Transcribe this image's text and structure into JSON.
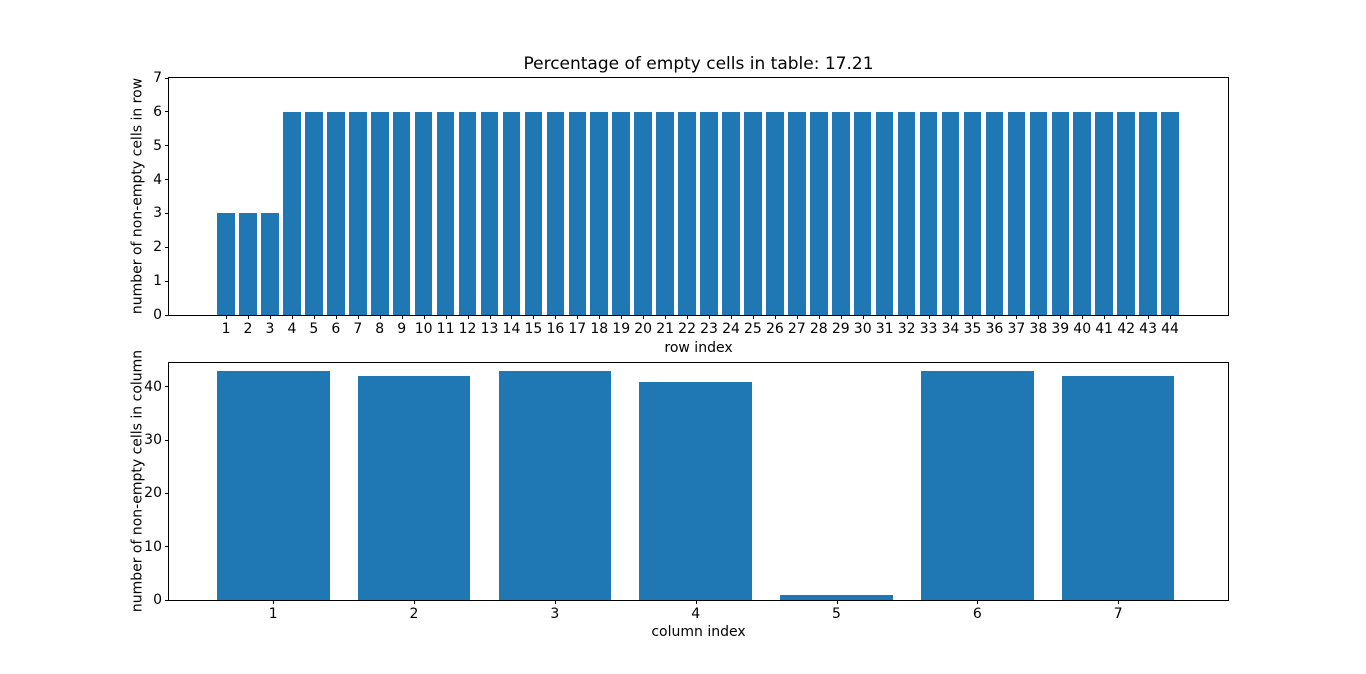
{
  "figure": {
    "background": "#ffffff",
    "accent_color": "#1f77b4"
  },
  "chart_data": [
    {
      "type": "bar",
      "title": "Percentage of empty cells in table: 17.21",
      "xlabel": "row index",
      "ylabel": "number of non-empty cells in row",
      "categories": [
        1,
        2,
        3,
        4,
        5,
        6,
        7,
        8,
        9,
        10,
        11,
        12,
        13,
        14,
        15,
        16,
        17,
        18,
        19,
        20,
        21,
        22,
        23,
        24,
        25,
        26,
        27,
        28,
        29,
        30,
        31,
        32,
        33,
        34,
        35,
        36,
        37,
        38,
        39,
        40,
        41,
        42,
        43,
        44
      ],
      "values": [
        3,
        3,
        3,
        6,
        6,
        6,
        6,
        6,
        6,
        6,
        6,
        6,
        6,
        6,
        6,
        6,
        6,
        6,
        6,
        6,
        6,
        6,
        6,
        6,
        6,
        6,
        6,
        6,
        6,
        6,
        6,
        6,
        6,
        6,
        6,
        6,
        6,
        6,
        6,
        6,
        6,
        6,
        6,
        6
      ],
      "yticks": [
        0,
        1,
        2,
        3,
        4,
        5,
        6,
        7
      ],
      "ylim": [
        0,
        7
      ],
      "grid": false,
      "legend": null,
      "bar_color": "#1f77b4"
    },
    {
      "type": "bar",
      "title": "",
      "xlabel": "column index",
      "ylabel": "number of non-empty cells in column",
      "categories": [
        1,
        2,
        3,
        4,
        5,
        6,
        7
      ],
      "values": [
        43,
        42,
        43,
        41,
        1,
        43,
        42
      ],
      "yticks": [
        0,
        10,
        20,
        30,
        40
      ],
      "ylim": [
        0,
        44.5
      ],
      "grid": false,
      "legend": null,
      "bar_color": "#1f77b4"
    }
  ]
}
